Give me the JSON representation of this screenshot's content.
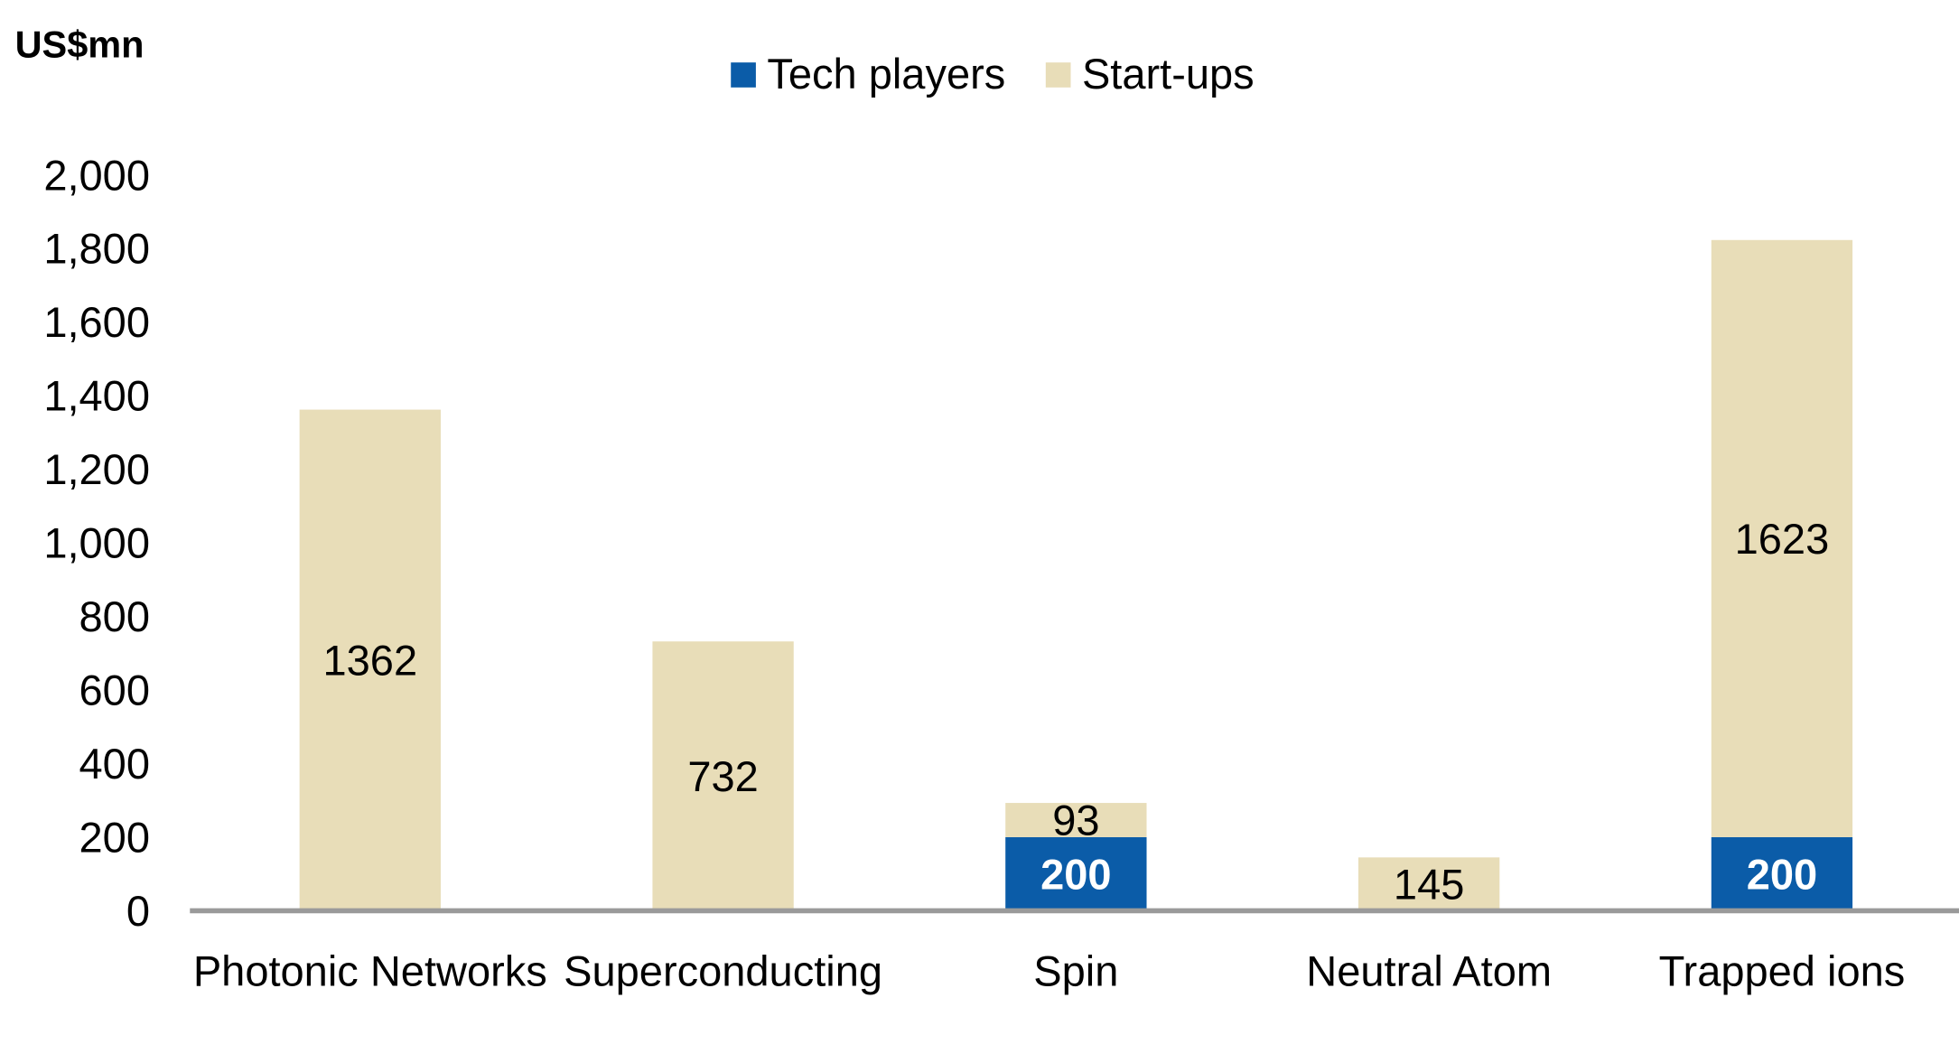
{
  "chart_data": {
    "type": "bar",
    "stacked": true,
    "unit_label": "US$mn",
    "categories": [
      "Photonic Networks",
      "Superconducting",
      "Spin",
      "Neutral Atom",
      "Trapped ions"
    ],
    "series": [
      {
        "name": "Tech players",
        "color": "#0B5CA8",
        "values": [
          0,
          0,
          200,
          0,
          200
        ],
        "labels": [
          "",
          "",
          "200",
          "",
          "200"
        ]
      },
      {
        "name": "Start-ups",
        "color": "#E8DDB8",
        "values": [
          1362,
          732,
          93,
          145,
          1623
        ],
        "labels": [
          "1362",
          "732",
          "93",
          "145",
          "1623"
        ]
      }
    ],
    "ylim": [
      0,
      2000
    ],
    "yticks": [
      "0",
      "200",
      "400",
      "600",
      "800",
      "1,000",
      "1,200",
      "1,400",
      "1,600",
      "1,800",
      "2,000"
    ],
    "legend_position": "top-center",
    "grid": false
  }
}
